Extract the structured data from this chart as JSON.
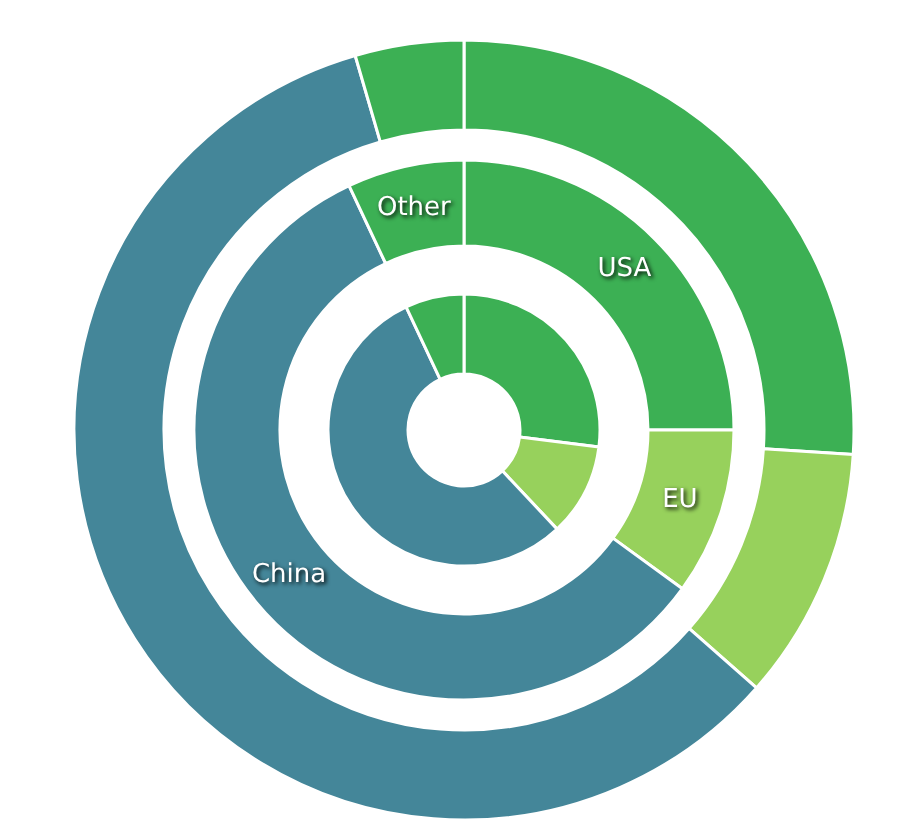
{
  "chart_data": [
    {
      "type": "donut",
      "categories": [
        null,
        null,
        null,
        null
      ],
      "values": [
        26,
        10.5,
        59,
        4.5
      ],
      "colors": [
        "#3cb054",
        "#97d15c",
        "#448699",
        "#3cb054"
      ]
    },
    {
      "type": "donut",
      "categories": [
        "USA",
        "EU",
        "China",
        "Other"
      ],
      "values": [
        25,
        10,
        58,
        7
      ],
      "colors": [
        "#3cb054",
        "#97d15c",
        "#448699",
        "#3cb054"
      ]
    },
    {
      "type": "donut",
      "categories": [
        null,
        null,
        null,
        null
      ],
      "values": [
        27,
        11,
        55,
        7
      ],
      "colors": [
        "#3cb054",
        "#97d15c",
        "#448699",
        "#3cb054"
      ]
    }
  ]
}
